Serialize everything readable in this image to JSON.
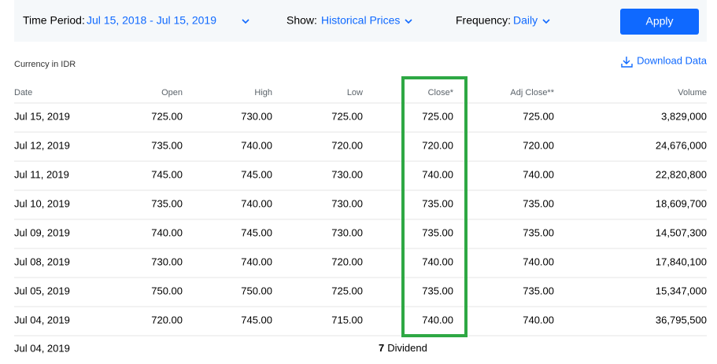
{
  "filters": {
    "time_period_label": "Time Period:",
    "time_period": "Jul 15, 2018 - Jul 15, 2019",
    "show_label": "Show:",
    "show": "Historical Prices",
    "frequency_label": "Frequency:",
    "frequency": "Daily",
    "apply": "Apply"
  },
  "currency": "Currency in IDR",
  "download": "Download Data",
  "table": {
    "headers": [
      "Date",
      "Open",
      "High",
      "Low",
      "Close*",
      "Adj Close**",
      "Volume"
    ],
    "rows": [
      [
        "Jul 15, 2019",
        "725.00",
        "730.00",
        "725.00",
        "725.00",
        "725.00",
        "3,829,000"
      ],
      [
        "Jul 12, 2019",
        "735.00",
        "740.00",
        "720.00",
        "720.00",
        "720.00",
        "24,676,000"
      ],
      [
        "Jul 11, 2019",
        "745.00",
        "745.00",
        "730.00",
        "740.00",
        "740.00",
        "22,820,800"
      ],
      [
        "Jul 10, 2019",
        "735.00",
        "740.00",
        "730.00",
        "735.00",
        "735.00",
        "18,609,700"
      ],
      [
        "Jul 09, 2019",
        "740.00",
        "745.00",
        "730.00",
        "735.00",
        "735.00",
        "14,507,300"
      ],
      [
        "Jul 08, 2019",
        "730.00",
        "740.00",
        "720.00",
        "740.00",
        "740.00",
        "17,840,100"
      ],
      [
        "Jul 05, 2019",
        "750.00",
        "750.00",
        "725.00",
        "735.00",
        "735.00",
        "15,347,000"
      ],
      [
        "Jul 04, 2019",
        "720.00",
        "745.00",
        "715.00",
        "740.00",
        "740.00",
        "36,795,500"
      ]
    ],
    "dividend": {
      "date": "Jul 04, 2019",
      "amount": "7",
      "label": "Dividend"
    }
  }
}
